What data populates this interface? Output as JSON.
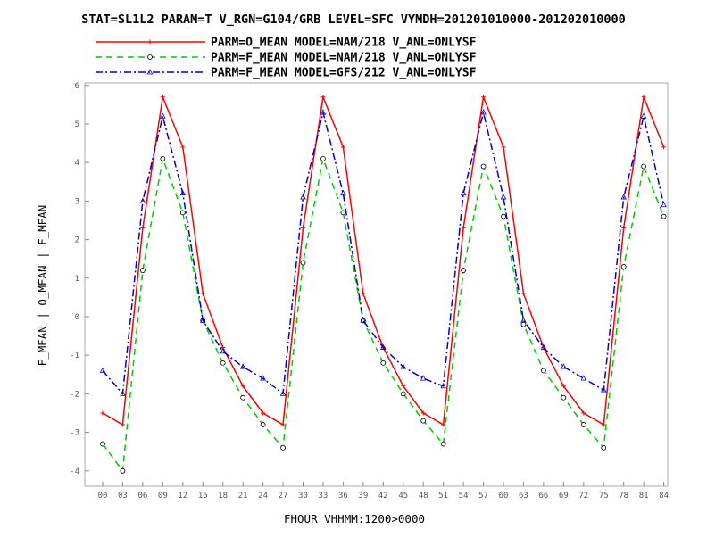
{
  "chart_data": {
    "type": "line",
    "title": "STAT=SL1L2 PARAM=T V_RGN=G104/GRB LEVEL=SFC VYMDH=201201010000-201202010000",
    "xlabel": "FHOUR VHHMM:1200>0000",
    "ylabel": "F_MEAN | O_MEAN | F_MEAN",
    "ylim": [
      -4.4,
      6.1
    ],
    "yticks": [
      "-4",
      "-3",
      "-2",
      "-1",
      "0",
      "1",
      "2",
      "3",
      "4",
      "5",
      "6"
    ],
    "categories": [
      "00",
      "03",
      "06",
      "09",
      "12",
      "15",
      "18",
      "21",
      "24",
      "27",
      "30",
      "33",
      "36",
      "39",
      "42",
      "45",
      "48",
      "51",
      "54",
      "57",
      "60",
      "63",
      "66",
      "69",
      "72",
      "75",
      "78",
      "81",
      "84"
    ],
    "legend_position": "top",
    "grid": false,
    "series": [
      {
        "name": "PARM=O_MEAN MODEL=NAM/218 V_ANL=ONLYSF",
        "color": "#ff0000",
        "style": "solid",
        "marker": "plus",
        "values": [
          -2.5,
          -2.8,
          2.3,
          5.7,
          4.4,
          0.6,
          -0.8,
          -1.8,
          -2.5,
          -2.8,
          2.3,
          5.7,
          4.4,
          0.6,
          -0.8,
          -1.8,
          -2.5,
          -2.8,
          2.3,
          5.7,
          4.4,
          0.6,
          -0.8,
          -1.8,
          -2.5,
          -2.8,
          2.3,
          5.7,
          4.4
        ]
      },
      {
        "name": "PARM=F_MEAN MODEL=NAM/218 V_ANL=ONLYSF",
        "color": "#00cc00",
        "style": "dashed",
        "marker": "circle",
        "values": [
          -3.3,
          -4.0,
          1.2,
          4.1,
          2.7,
          -0.1,
          -1.2,
          -2.1,
          -2.8,
          -3.4,
          1.4,
          4.1,
          2.7,
          -0.1,
          -1.2,
          -2.0,
          -2.7,
          -3.3,
          1.2,
          3.9,
          2.6,
          -0.2,
          -1.4,
          -2.1,
          -2.8,
          -3.4,
          1.3,
          3.9,
          2.6
        ]
      },
      {
        "name": "PARM=F_MEAN MODEL=GFS/212 V_ANL=ONLYSF",
        "color": "#0000cc",
        "style": "dashdot",
        "marker": "triangle",
        "values": [
          -1.4,
          -2.0,
          3.0,
          5.2,
          3.2,
          -0.1,
          -0.9,
          -1.3,
          -1.6,
          -2.0,
          3.1,
          5.3,
          3.2,
          -0.1,
          -0.8,
          -1.3,
          -1.6,
          -1.8,
          3.2,
          5.3,
          3.1,
          -0.1,
          -0.8,
          -1.3,
          -1.6,
          -1.9,
          3.1,
          5.2,
          2.9
        ]
      }
    ]
  }
}
